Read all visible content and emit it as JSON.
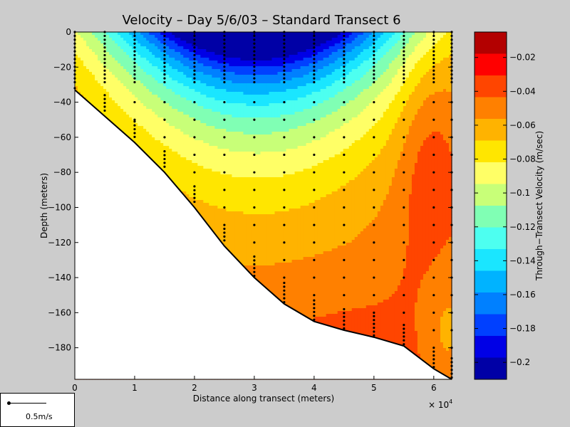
{
  "chart_data": {
    "type": "contour",
    "title": "Velocity – Day 5/6/03 – Standard Transect 6",
    "xlabel": "Distance along transect (meters)",
    "ylabel": "Depth (meters)",
    "x_exponent_label": "× 10",
    "x_exponent_power": "4",
    "x_unit_scale": 10000,
    "xlim": [
      0,
      63000
    ],
    "ylim": [
      -198,
      0
    ],
    "x_ticks": [
      0,
      1,
      2,
      3,
      4,
      5,
      6
    ],
    "x_tick_labels": [
      "0",
      "1",
      "2",
      "3",
      "4",
      "5",
      "6"
    ],
    "y_ticks": [
      0,
      -20,
      -40,
      -60,
      -80,
      -100,
      -120,
      -140,
      -160,
      -180
    ],
    "y_tick_labels": [
      "0",
      "−20",
      "−40",
      "−60",
      "−80",
      "−100",
      "−120",
      "−140",
      "−160",
      "−180"
    ],
    "colorbar": {
      "label": "Through−Transect Velocity (m/sec)",
      "range": [
        -0.21,
        -0.005
      ],
      "ticks": [
        -0.02,
        -0.04,
        -0.06,
        -0.08,
        -0.1,
        -0.12,
        -0.14,
        -0.16,
        -0.18,
        -0.2
      ],
      "tick_labels": [
        "−0.02",
        "−0.04",
        "−0.06",
        "−0.08",
        "−0.1",
        "−0.12",
        "−0.14",
        "−0.16",
        "−0.18",
        "−0.2"
      ],
      "colors": [
        "#b30000",
        "#ff0000",
        "#ff4500",
        "#ff8000",
        "#ffb300",
        "#ffe600",
        "#ffff66",
        "#c8ff78",
        "#80ffb4",
        "#4dfff0",
        "#1ae6ff",
        "#00b3ff",
        "#0080ff",
        "#0040ff",
        "#0000e6",
        "#0000a6"
      ]
    },
    "bottom_profile": {
      "x": [
        0,
        5000,
        10000,
        15000,
        20000,
        25000,
        30000,
        35000,
        40000,
        45000,
        50000,
        55000,
        60000,
        63000
      ],
      "depth": [
        -33,
        -48,
        -63,
        -80,
        -100,
        -122,
        -140,
        -155,
        -165,
        -170,
        -174,
        -179,
        -192,
        -198
      ]
    },
    "station_x": [
      0,
      5000,
      10000,
      15000,
      20000,
      25000,
      30000,
      35000,
      40000,
      45000,
      50000,
      55000,
      60000,
      63000
    ],
    "velocity_scale_legend": "0.5m/s"
  }
}
